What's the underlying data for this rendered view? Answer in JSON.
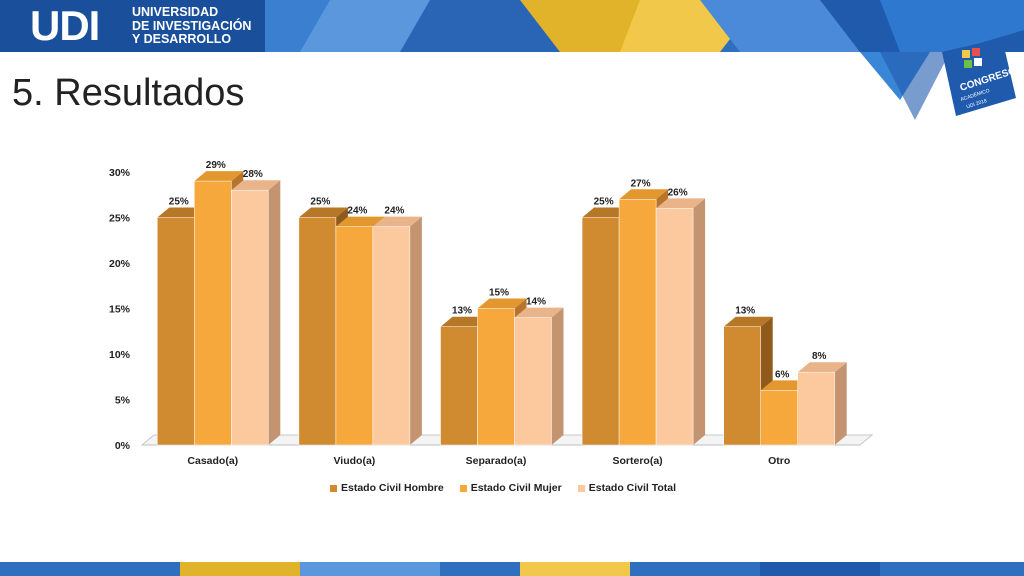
{
  "header": {
    "logo_mark": "UDI",
    "university_lines": [
      "UNIVERSIDAD",
      "DE INVESTIGACIÓN",
      "Y DESARROLLO"
    ],
    "badge_text": "CONGRESO",
    "badge_subtext": "ACADÉMICO",
    "badge_year": "UDI 2018"
  },
  "slide": {
    "title": "5. Resultados"
  },
  "colors": {
    "hombre": "#d08a30",
    "mujer": "#f7a83d",
    "total": "#fcc99f"
  },
  "chart_data": {
    "type": "bar",
    "title": "",
    "xlabel": "",
    "ylabel": "",
    "ylim": [
      0,
      30
    ],
    "yticks": [
      "0%",
      "5%",
      "10%",
      "15%",
      "20%",
      "25%",
      "30%"
    ],
    "categories": [
      "Casado(a)",
      "Viudo(a)",
      "Separado(a)",
      "Sortero(a)",
      "Otro"
    ],
    "series": [
      {
        "name": "Estado Civil Hombre",
        "values": [
          25,
          25,
          13,
          25,
          13
        ],
        "labels": [
          "25%",
          "25%",
          "13%",
          "25%",
          "13%"
        ]
      },
      {
        "name": "Estado Civil Mujer",
        "values": [
          29,
          24,
          15,
          27,
          6
        ],
        "labels": [
          "29%",
          "24%",
          "15%",
          "27%",
          "6%"
        ]
      },
      {
        "name": "Estado Civil Total",
        "values": [
          28,
          24,
          14,
          26,
          8
        ],
        "labels": [
          "28%",
          "24%",
          "14%",
          "26%",
          "8%"
        ]
      }
    ],
    "grid": false,
    "legend": "bottom",
    "style": "3d-clustered-column"
  }
}
